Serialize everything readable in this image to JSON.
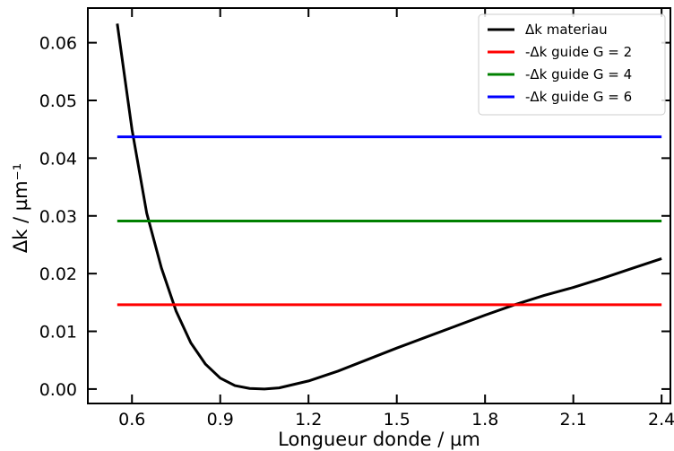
{
  "chart_data": {
    "type": "line",
    "title": "",
    "xlabel": "Longueur donde / µm",
    "ylabel": "Δk / µm⁻¹",
    "xlim": [
      0.45,
      2.43
    ],
    "ylim": [
      -0.0025,
      0.066
    ],
    "x_ticks": [
      0.6,
      0.9,
      1.2,
      1.5,
      1.8,
      2.1,
      2.4
    ],
    "x_tick_labels": [
      "0.6",
      "0.9",
      "1.2",
      "1.5",
      "1.8",
      "2.1",
      "2.4"
    ],
    "y_ticks": [
      0.0,
      0.01,
      0.02,
      0.03,
      0.04,
      0.05,
      0.06
    ],
    "y_tick_labels": [
      "0.00",
      "0.01",
      "0.02",
      "0.03",
      "0.04",
      "0.05",
      "0.06"
    ],
    "grid": false,
    "legend_position": "top-right",
    "series": [
      {
        "name": "Δk materiau",
        "color": "#000000",
        "x": [
          0.55,
          0.6,
          0.65,
          0.7,
          0.75,
          0.8,
          0.85,
          0.9,
          0.95,
          1.0,
          1.05,
          1.1,
          1.2,
          1.3,
          1.4,
          1.5,
          1.6,
          1.7,
          1.8,
          1.9,
          2.0,
          2.1,
          2.2,
          2.3,
          2.4
        ],
        "y": [
          0.0633,
          0.045,
          0.0305,
          0.021,
          0.0135,
          0.008,
          0.0043,
          0.0019,
          0.0006,
          0.0001,
          0.0,
          0.0002,
          0.0014,
          0.0031,
          0.0051,
          0.0071,
          0.009,
          0.0109,
          0.0128,
          0.0146,
          0.0162,
          0.0176,
          0.0192,
          0.0209,
          0.0226
        ]
      },
      {
        "name": "-Δk guide G = 2",
        "color": "#ff0000",
        "x": [
          0.55,
          2.4
        ],
        "y": [
          0.0146,
          0.0146
        ]
      },
      {
        "name": "-Δk guide G = 4",
        "color": "#008000",
        "x": [
          0.55,
          2.4
        ],
        "y": [
          0.0291,
          0.0291
        ]
      },
      {
        "name": "-Δk guide G = 6",
        "color": "#0000ff",
        "x": [
          0.55,
          2.4
        ],
        "y": [
          0.0437,
          0.0437
        ]
      }
    ]
  }
}
